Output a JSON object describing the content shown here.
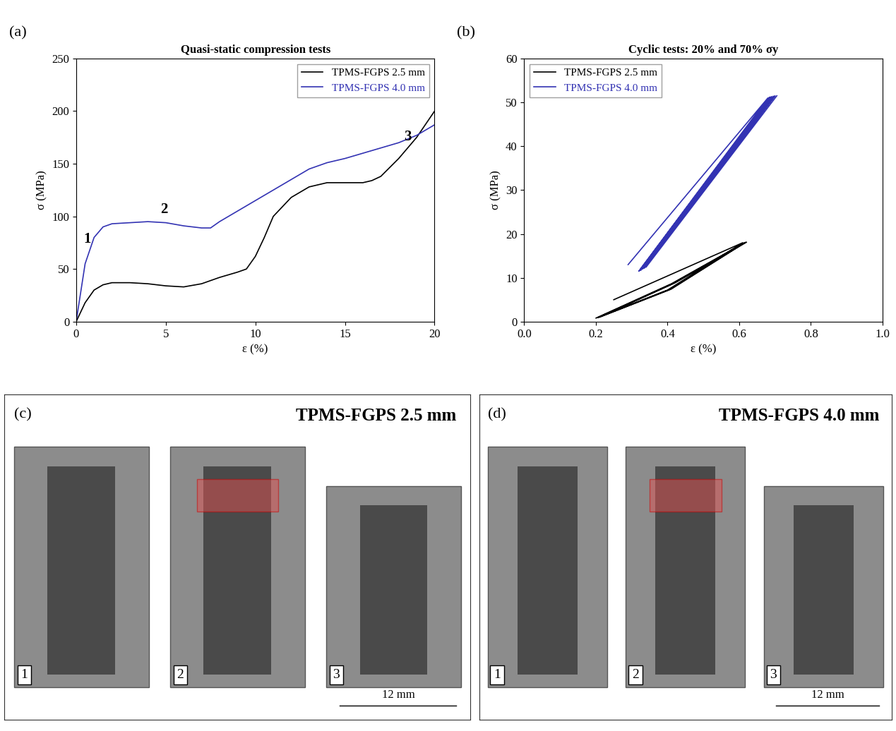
{
  "chart_data": [
    {
      "type": "line",
      "panel_label": "(a)",
      "title": "Quasi-static compression tests",
      "x_label": "ε (%)",
      "y_label": "σ (MPa)",
      "xlim": [
        0,
        20
      ],
      "ylim": [
        0,
        250
      ],
      "xticks": [
        0,
        5,
        10,
        15,
        20
      ],
      "yticks": [
        0,
        50,
        100,
        150,
        200,
        250
      ],
      "legend": "upper right",
      "series": [
        {
          "name": "TPMS-FGPS 2.5 mm",
          "color": "#000000",
          "x": [
            0,
            0.5,
            1,
            1.5,
            2,
            3,
            4,
            5,
            6,
            7,
            8,
            9,
            9.5,
            10,
            10.5,
            11,
            12,
            13,
            14,
            15,
            16,
            16.5,
            17,
            18,
            19,
            20
          ],
          "values": [
            0,
            18,
            30,
            35,
            37,
            37,
            36,
            34,
            33,
            36,
            42,
            47,
            50,
            62,
            80,
            100,
            118,
            128,
            132,
            132,
            132,
            134,
            138,
            155,
            175,
            200
          ]
        },
        {
          "name": "TPMS-FGPS 4.0 mm",
          "color": "#3333b3",
          "x": [
            0,
            0.5,
            1,
            1.5,
            2,
            3,
            4,
            5,
            6,
            7,
            7.5,
            8,
            9,
            10,
            11,
            12,
            13,
            14,
            15,
            16,
            17,
            18,
            19,
            20
          ],
          "values": [
            0,
            55,
            80,
            90,
            93,
            94,
            95,
            94,
            91,
            89,
            89,
            95,
            105,
            115,
            125,
            135,
            145,
            151,
            155,
            160,
            165,
            170,
            177,
            187
          ]
        }
      ],
      "annotations": [
        {
          "text": "1",
          "x": 0.4,
          "y": 75
        },
        {
          "text": "2",
          "x": 4.7,
          "y": 103
        },
        {
          "text": "3",
          "x": 18.3,
          "y": 172
        }
      ]
    },
    {
      "type": "line",
      "panel_label": "(b)",
      "title": "Cyclic tests: 20% and 70% σy",
      "x_label": "ε (%)",
      "y_label": "σ (MPa)",
      "xlim": [
        0,
        1
      ],
      "ylim": [
        0,
        60
      ],
      "xticks": [
        {
          "value": 0,
          "label": "0.0"
        },
        0.2,
        0.4,
        0.6,
        0.8,
        {
          "value": 1,
          "label": "1.0"
        }
      ],
      "yticks": [
        0,
        10,
        20,
        30,
        40,
        50,
        60
      ],
      "legend": "upper left",
      "series": [
        {
          "name": "TPMS-FGPS 2.5 mm",
          "color": "#000000",
          "x": [
            0.25,
            0.43,
            0.61,
            0.4,
            0.2,
            0.41,
            0.615,
            0.405,
            0.205,
            0.415,
            0.618,
            0.41,
            0.21,
            0.42,
            0.62
          ],
          "values": [
            5,
            11.5,
            18,
            7.2,
            0.8,
            8.6,
            18,
            7.3,
            0.9,
            8.7,
            18.1,
            7.4,
            1.0,
            8.8,
            18.1
          ]
        },
        {
          "name": "TPMS-FGPS 4.0 mm",
          "color": "#3333b3",
          "x": [
            0.29,
            0.68,
            0.32,
            0.685,
            0.325,
            0.69,
            0.33,
            0.695,
            0.335,
            0.7,
            0.34,
            0.705
          ],
          "values": [
            13,
            51,
            11.5,
            51.2,
            11.7,
            51.3,
            12,
            51.4,
            12.2,
            51.5,
            12.4,
            51.5
          ]
        }
      ]
    }
  ],
  "photo_panels": [
    {
      "panel_label": "(c)",
      "title": "TPMS-FGPS 2.5 mm",
      "frames": [
        "1",
        "2",
        "3"
      ],
      "scale_bar": "12 mm"
    },
    {
      "panel_label": "(d)",
      "title": "TPMS-FGPS 4.0 mm",
      "frames": [
        "1",
        "2",
        "3"
      ],
      "scale_bar": "12 mm"
    }
  ]
}
